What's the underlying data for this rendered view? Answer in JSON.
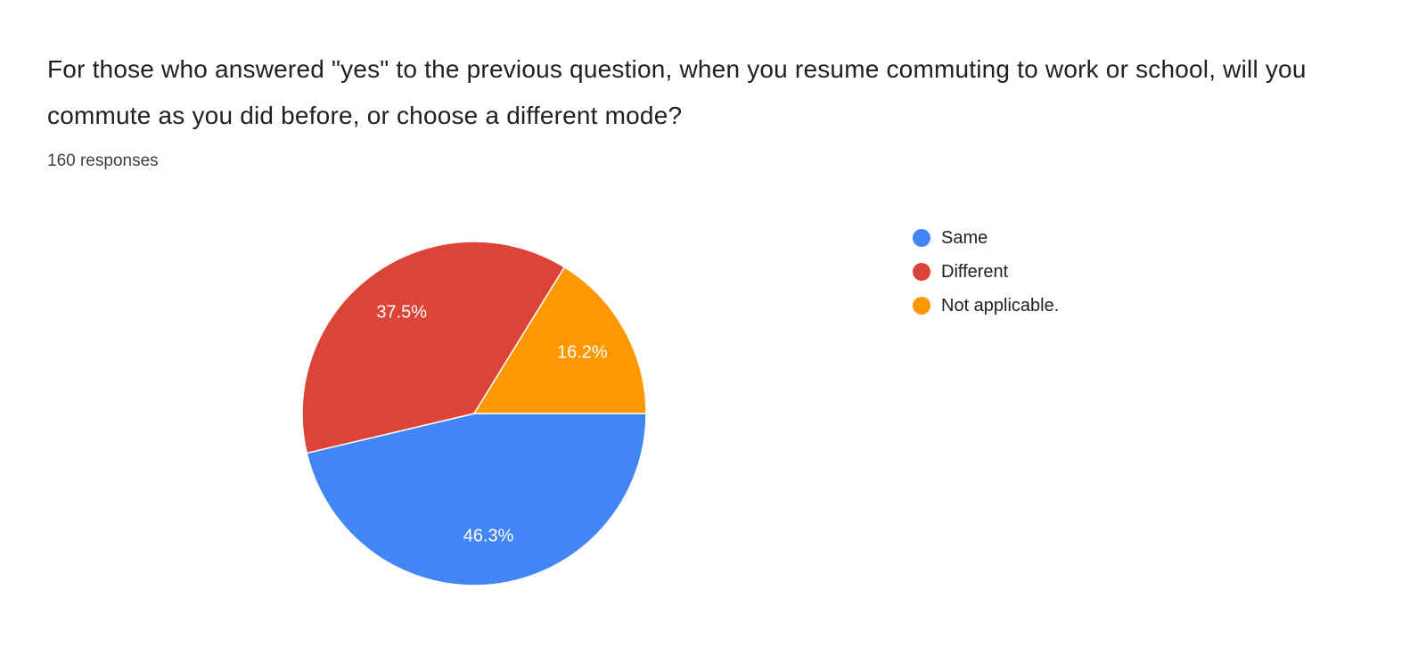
{
  "header": {
    "title": "For those who answered \"yes\" to the previous question, when you resume commuting to work or school, will you commute as you did before, or choose a different mode?",
    "responses": "160 responses"
  },
  "chart_data": {
    "type": "pie",
    "title": "For those who answered \"yes\" to the previous question, when you resume commuting to work or school, will you commute as you did before, or choose a different mode?",
    "subtitle": "160 responses",
    "categories": [
      "Same",
      "Different",
      "Not applicable."
    ],
    "values": [
      46.3,
      37.5,
      16.2
    ],
    "slice_labels": [
      "46.3%",
      "37.5%",
      "16.2%"
    ],
    "colors": [
      "#4285f4",
      "#db4437",
      "#ff9800"
    ],
    "label_text_color": "#ffffff",
    "start_angle_deg": 0,
    "direction": "clockwise",
    "legend_position": "right"
  }
}
